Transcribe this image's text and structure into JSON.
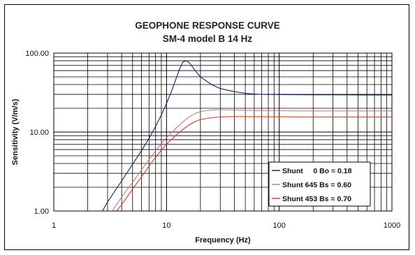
{
  "chart_data": {
    "type": "line",
    "title": "GEOPHONE RESPONSE CURVE",
    "subtitle": "SM-4 model B 14 Hz",
    "xlabel": "Frequency (Hz)",
    "ylabel": "Sensitivity (V/m/s)",
    "x_scale": "log",
    "y_scale": "log",
    "xlim": [
      1,
      1000
    ],
    "ylim": [
      1,
      100
    ],
    "x_ticks": [
      {
        "value": 1,
        "label": "1"
      },
      {
        "value": 10,
        "label": "10"
      },
      {
        "value": 100,
        "label": "100"
      },
      {
        "value": 1000,
        "label": "1000"
      }
    ],
    "y_ticks": [
      {
        "value": 1,
        "label": "1.00"
      },
      {
        "value": 10,
        "label": "10.00"
      },
      {
        "value": 100,
        "label": "100.00"
      }
    ],
    "grid": true,
    "legend_position": "bottom-right",
    "series": [
      {
        "name": "Shunt     0 Bo = 0.18",
        "color": "#1c1c6e",
        "x": [
          2.7,
          3,
          4,
          5,
          6,
          7,
          8,
          9,
          10,
          11,
          12,
          13,
          14,
          15,
          16,
          18,
          20,
          25,
          30,
          40,
          50,
          60,
          70,
          100,
          150,
          200,
          300,
          500,
          1000
        ],
        "y": [
          1.0,
          1.3,
          2.4,
          3.9,
          5.8,
          8.3,
          11.8,
          16.5,
          23.0,
          32.0,
          45.0,
          62.0,
          77.0,
          80.0,
          75.0,
          60.0,
          50.0,
          40.0,
          35.5,
          32.5,
          31.0,
          30.3,
          30.0,
          29.8,
          29.7,
          29.6,
          29.6,
          29.5,
          29.5
        ]
      },
      {
        "name": "Shunt 645 Bs = 0.60",
        "color": "#c07a8e",
        "x": [
          3.3,
          4,
          5,
          6,
          7,
          8,
          9,
          10,
          12,
          14,
          16,
          18,
          20,
          25,
          30,
          40,
          50,
          70,
          100,
          200,
          500,
          1000
        ],
        "y": [
          1.0,
          1.5,
          2.3,
          3.3,
          4.5,
          5.8,
          7.1,
          8.5,
          11.0,
          13.5,
          15.6,
          17.2,
          18.2,
          19.0,
          19.2,
          19.0,
          18.8,
          18.7,
          18.6,
          18.5,
          18.5,
          18.5
        ]
      },
      {
        "name": "Shunt 453 Bs = 0.70",
        "color": "#e03a1e",
        "x": [
          3.6,
          4,
          5,
          6,
          7,
          8,
          9,
          10,
          12,
          14,
          16,
          18,
          20,
          25,
          30,
          40,
          50,
          70,
          100,
          200,
          500,
          1000
        ],
        "y": [
          1.0,
          1.2,
          1.9,
          2.7,
          3.7,
          4.8,
          5.9,
          7.0,
          9.0,
          10.8,
          12.4,
          13.6,
          14.4,
          15.2,
          15.5,
          15.7,
          15.7,
          15.6,
          15.6,
          15.5,
          15.5,
          15.5
        ]
      }
    ]
  }
}
